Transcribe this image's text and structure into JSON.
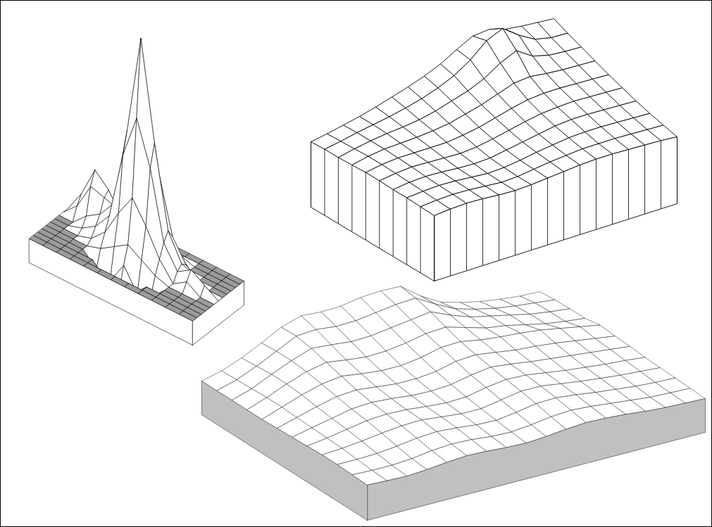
{
  "chart_data": [
    {
      "type": "surface",
      "tick_labels": false,
      "color": "#ffffff",
      "zlim": [
        -11,
        100
      ],
      "z": [
        [
          0,
          0,
          0,
          0,
          0,
          0,
          0,
          0,
          0,
          0,
          0,
          0,
          0
        ],
        [
          0,
          0,
          0,
          0,
          0,
          0,
          0,
          0,
          0,
          0,
          0,
          0,
          0
        ],
        [
          0,
          0,
          0,
          0,
          0,
          -6,
          -8,
          -6,
          0,
          0,
          0,
          0,
          0
        ],
        [
          0,
          0,
          0,
          0,
          -6,
          -8,
          2,
          -8,
          -6,
          0,
          0,
          0,
          0
        ],
        [
          0,
          0,
          0,
          0,
          2,
          6,
          10,
          6,
          2,
          0,
          0,
          0,
          0
        ],
        [
          0,
          0,
          0,
          2,
          8,
          20,
          30,
          20,
          8,
          0,
          4,
          0,
          0
        ],
        [
          0,
          0,
          2,
          6,
          14,
          45,
          65,
          45,
          14,
          4,
          8,
          4,
          0
        ],
        [
          0,
          0,
          6,
          10,
          18,
          55,
          100,
          55,
          18,
          6,
          4,
          0,
          0
        ],
        [
          0,
          6,
          18,
          16,
          14,
          40,
          60,
          40,
          14,
          4,
          0,
          0,
          0
        ],
        [
          0,
          10,
          24,
          18,
          8,
          16,
          24,
          16,
          6,
          0,
          0,
          0,
          0
        ],
        [
          0,
          4,
          12,
          8,
          2,
          4,
          6,
          4,
          2,
          0,
          0,
          0,
          0
        ],
        [
          0,
          0,
          2,
          0,
          0,
          0,
          0,
          0,
          0,
          0,
          0,
          0,
          0
        ],
        [
          0,
          0,
          0,
          0,
          0,
          0,
          0,
          0,
          0,
          0,
          0,
          0,
          0
        ]
      ]
    },
    {
      "type": "surface",
      "tick_labels": false,
      "color": "#ffffff",
      "zlim": [
        0,
        185
      ],
      "z": [
        [
          93,
          95,
          96,
          95,
          93,
          92,
          93,
          95,
          97,
          99,
          100,
          100,
          99,
          98,
          97,
          95
        ],
        [
          94,
          96,
          97,
          96,
          94,
          92,
          93,
          96,
          99,
          101,
          103,
          103,
          103,
          102,
          101,
          100
        ],
        [
          95,
          97,
          98,
          97,
          95,
          93,
          94,
          97,
          101,
          104,
          107,
          108,
          108,
          107,
          106,
          105
        ],
        [
          95,
          98,
          99,
          98,
          96,
          95,
          96,
          100,
          104,
          108,
          112,
          114,
          114,
          113,
          112,
          111
        ],
        [
          96,
          99,
          101,
          100,
          99,
          98,
          100,
          104,
          109,
          114,
          118,
          120,
          121,
          120,
          119,
          118
        ],
        [
          96,
          100,
          102,
          102,
          102,
          102,
          105,
          109,
          115,
          121,
          126,
          128,
          128,
          127,
          126,
          125
        ],
        [
          95,
          100,
          103,
          104,
          105,
          107,
          110,
          116,
          122,
          130,
          138,
          140,
          137,
          135,
          134,
          133
        ],
        [
          94,
          99,
          103,
          106,
          108,
          111,
          116,
          123,
          130,
          140,
          155,
          165,
          150,
          144,
          142,
          141
        ],
        [
          94,
          98,
          103,
          107,
          111,
          116,
          122,
          130,
          140,
          155,
          175,
          185,
          168,
          155,
          150,
          149
        ],
        [
          93,
          97,
          102,
          107,
          113,
          120,
          127,
          135,
          145,
          158,
          170,
          172,
          165,
          162,
          160,
          158
        ]
      ]
    },
    {
      "type": "surface",
      "tick_labels": false,
      "color": "#c0c0c0",
      "zlim": [
        0,
        110
      ],
      "z": [
        [
          50,
          49,
          48,
          50,
          53,
          55,
          54,
          52,
          51,
          53,
          56,
          58,
          57,
          55,
          52,
          50,
          49,
          48
        ],
        [
          51,
          50,
          50,
          52,
          56,
          58,
          57,
          54,
          53,
          56,
          60,
          62,
          60,
          57,
          54,
          51,
          50,
          49
        ],
        [
          52,
          52,
          53,
          56,
          60,
          62,
          60,
          57,
          56,
          60,
          65,
          66,
          63,
          59,
          56,
          53,
          51,
          50
        ],
        [
          52,
          54,
          57,
          61,
          64,
          65,
          62,
          59,
          59,
          64,
          69,
          69,
          65,
          61,
          58,
          55,
          53,
          51
        ],
        [
          51,
          55,
          60,
          65,
          67,
          66,
          63,
          61,
          62,
          68,
          72,
          71,
          67,
          63,
          60,
          57,
          55,
          52
        ],
        [
          50,
          56,
          62,
          68,
          70,
          68,
          65,
          64,
          66,
          72,
          76,
          73,
          69,
          66,
          63,
          60,
          57,
          54
        ],
        [
          49,
          57,
          65,
          72,
          74,
          71,
          68,
          68,
          71,
          78,
          80,
          76,
          72,
          70,
          67,
          63,
          59,
          55
        ],
        [
          48,
          58,
          68,
          76,
          80,
          76,
          73,
          73,
          77,
          84,
          85,
          80,
          77,
          75,
          72,
          67,
          62,
          57
        ],
        [
          48,
          58,
          70,
          80,
          86,
          82,
          79,
          80,
          84,
          90,
          92,
          84,
          76,
          72,
          66,
          60,
          56,
          53
        ],
        [
          48,
          57,
          70,
          82,
          92,
          90,
          87,
          88,
          92,
          96,
          100,
          88,
          78,
          72,
          66,
          60,
          56,
          53
        ],
        [
          48,
          56,
          68,
          82,
          96,
          98,
          95,
          96,
          100,
          104,
          106,
          90,
          76,
          68,
          62,
          58,
          55,
          52
        ],
        [
          48,
          55,
          66,
          80,
          95,
          104,
          102,
          103,
          108,
          110,
          109,
          88,
          72,
          64,
          58,
          54,
          51,
          50
        ]
      ]
    }
  ]
}
